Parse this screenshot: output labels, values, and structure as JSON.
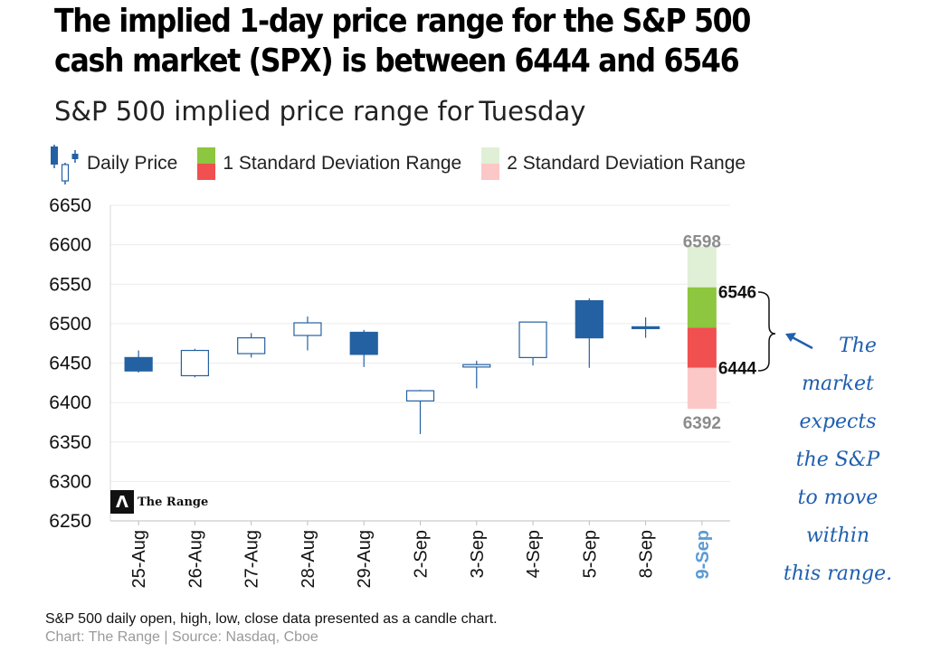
{
  "title": "The implied 1-day price range for the S&P 500 cash market (SPX) is between 6444 and 6546",
  "subtitle": "S&P 500 implied price range for",
  "subtitle_day": "Tuesday",
  "legend": {
    "daily_price": "Daily Price",
    "one_sd": "1 Standard Deviation Range",
    "two_sd": "2 Standard Deviation Range"
  },
  "colors": {
    "candle": "#2461a2",
    "sd1_up": "#8dc63f",
    "sd1_down": "#f05050",
    "sd2_up": "#dff0d6",
    "sd2_down": "#fcc7c7",
    "highlight_date": "#5b9bd5",
    "annotation": "#1f5fae"
  },
  "logo_text": "The Range",
  "annotation_lines": [
    "The",
    "market",
    "expects",
    "the S&P",
    "to move",
    "within",
    "this range."
  ],
  "caption": "S&P 500 daily open, high, low, close data presented as a candle chart.",
  "source": "Chart: The Range | Source: Nasdaq, Cboe",
  "chart_data": {
    "type": "candlestick",
    "ylim": [
      6250,
      6650
    ],
    "yticks": [
      6650,
      6600,
      6550,
      6500,
      6450,
      6400,
      6350,
      6300,
      6250
    ],
    "categories": [
      "25-Aug",
      "26-Aug",
      "27-Aug",
      "28-Aug",
      "29-Aug",
      "2-Sep",
      "3-Sep",
      "4-Sep",
      "5-Sep",
      "8-Sep",
      "9-Sep"
    ],
    "candles": [
      {
        "date": "25-Aug",
        "open": 6457,
        "high": 6466,
        "low": 6438,
        "close": 6440
      },
      {
        "date": "26-Aug",
        "open": 6434,
        "high": 6468,
        "low": 6432,
        "close": 6466
      },
      {
        "date": "27-Aug",
        "open": 6462,
        "high": 6488,
        "low": 6457,
        "close": 6482
      },
      {
        "date": "28-Aug",
        "open": 6485,
        "high": 6509,
        "low": 6466,
        "close": 6501
      },
      {
        "date": "29-Aug",
        "open": 6489,
        "high": 6492,
        "low": 6445,
        "close": 6461
      },
      {
        "date": "2-Sep",
        "open": 6402,
        "high": 6416,
        "low": 6360,
        "close": 6415
      },
      {
        "date": "3-Sep",
        "open": 6445,
        "high": 6453,
        "low": 6418,
        "close": 6448
      },
      {
        "date": "4-Sep",
        "open": 6457,
        "high": 6502,
        "low": 6447,
        "close": 6502
      },
      {
        "date": "5-Sep",
        "open": 6529,
        "high": 6532,
        "low": 6444,
        "close": 6482
      },
      {
        "date": "8-Sep",
        "open": 6496,
        "high": 6508,
        "low": 6482,
        "close": 6495
      }
    ],
    "implied_range": {
      "date": "9-Sep",
      "center": 6495,
      "sd1_low": 6444,
      "sd1_high": 6546,
      "sd2_low": 6392,
      "sd2_high": 6598,
      "labels": {
        "sd2_high": "6598",
        "sd1_high": "6546",
        "sd1_low": "6444",
        "sd2_low": "6392"
      }
    },
    "highlighted_category": "9-Sep"
  }
}
